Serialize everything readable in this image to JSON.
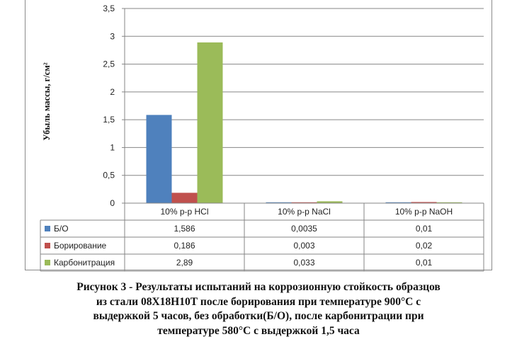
{
  "chart_data": {
    "type": "bar",
    "ylabel": "Убыль массы, г/см²",
    "ylim": [
      0,
      3.5
    ],
    "yticks": [
      "0",
      "0,5",
      "1",
      "1,5",
      "2",
      "2,5",
      "3",
      "3,5"
    ],
    "ytick_values": [
      0,
      0.5,
      1,
      1.5,
      2,
      2.5,
      3,
      3.5
    ],
    "grid": true,
    "legend": "data-table",
    "categories": [
      "10% р-р HCl",
      "10% р-р NaCl",
      "10% р-р NaOH"
    ],
    "series": [
      {
        "name": "Б/О",
        "color": "#4f81bd",
        "values": [
          1.586,
          0.0035,
          0.01
        ],
        "labels": [
          "1,586",
          "0,0035",
          "0,01"
        ]
      },
      {
        "name": "Борирование",
        "color": "#c0504d",
        "values": [
          0.186,
          0.003,
          0.02
        ],
        "labels": [
          "0,186",
          "0,003",
          "0,02"
        ]
      },
      {
        "name": "Карбонитрация",
        "color": "#9bbb59",
        "values": [
          2.89,
          0.033,
          0.01
        ],
        "labels": [
          "2,89",
          "0,033",
          "0,01"
        ]
      }
    ]
  },
  "caption": {
    "lines": [
      "Рисунок 3 - Результаты испытаний на коррозионную стойкость образцов",
      "из стали 08Х18Н10Т после борирования при температуре 900°С с",
      "выдержкой 5 часов, без обработки(Б/О), после карбонитрации при",
      "температуре 580°С с выдержкой 1,5 часа"
    ]
  }
}
